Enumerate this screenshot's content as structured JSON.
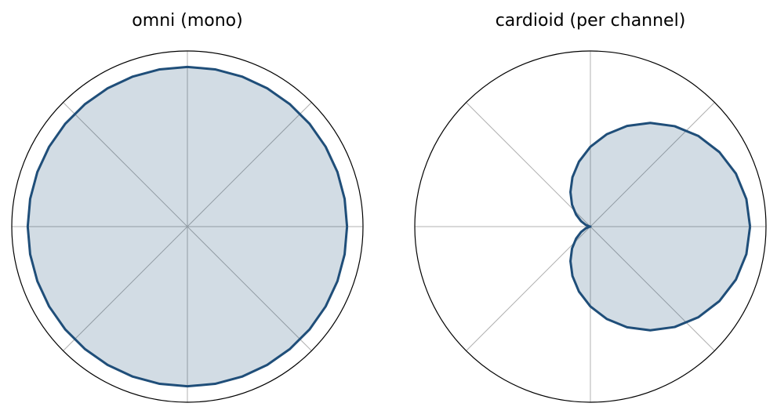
{
  "chart_data": [
    {
      "type": "polar",
      "title": "omni (mono)",
      "color": "#1f4e79",
      "theta": [
        0,
        10,
        20,
        30,
        40,
        50,
        60,
        70,
        80,
        90,
        100,
        110,
        120,
        130,
        140,
        150,
        160,
        170,
        180,
        190,
        200,
        210,
        220,
        230,
        240,
        250,
        260,
        270,
        280,
        290,
        300,
        310,
        320,
        330,
        340,
        350,
        360
      ],
      "values": [
        1,
        1,
        1,
        1,
        1,
        1,
        1,
        1,
        1,
        1,
        1,
        1,
        1,
        1,
        1,
        1,
        1,
        1,
        1,
        1,
        1,
        1,
        1,
        1,
        1,
        1,
        1,
        1,
        1,
        1,
        1,
        1,
        1,
        1,
        1,
        1,
        1
      ],
      "ylim": [
        0,
        1.1
      ],
      "thetagrids": [
        0,
        45,
        90,
        135,
        180,
        225,
        270,
        315
      ],
      "grid": true
    },
    {
      "type": "polar",
      "title": "cardioid (per channel)",
      "color": "#1f4e79",
      "theta": [
        0,
        10,
        20,
        30,
        40,
        50,
        60,
        70,
        80,
        90,
        100,
        110,
        120,
        130,
        140,
        150,
        160,
        170,
        180,
        190,
        200,
        210,
        220,
        230,
        240,
        250,
        260,
        270,
        280,
        290,
        300,
        310,
        320,
        330,
        340,
        350,
        360
      ],
      "values": [
        1,
        0.992,
        0.97,
        0.933,
        0.883,
        0.821,
        0.75,
        0.671,
        0.587,
        0.5,
        0.413,
        0.329,
        0.25,
        0.179,
        0.117,
        0.067,
        0.03,
        0.008,
        0,
        0.008,
        0.03,
        0.067,
        0.117,
        0.179,
        0.25,
        0.329,
        0.413,
        0.5,
        0.587,
        0.671,
        0.75,
        0.821,
        0.883,
        0.933,
        0.97,
        0.992,
        1
      ],
      "ylim": [
        0,
        1.1
      ],
      "thetagrids": [
        0,
        45,
        90,
        135,
        180,
        225,
        270,
        315
      ],
      "grid": true
    }
  ]
}
